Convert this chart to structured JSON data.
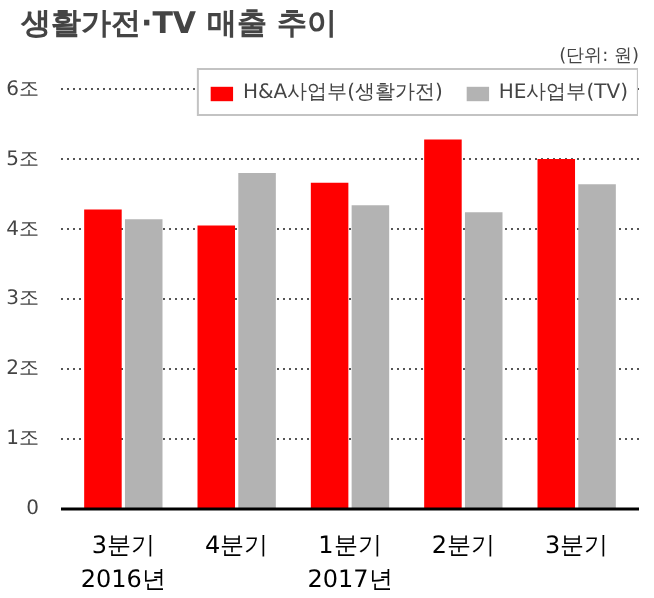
{
  "chart_data": {
    "type": "bar",
    "title": "생활가전·TV 매출 추이",
    "subtitle": "(단위: 원)",
    "categories": [
      "3분기\n2016년",
      "4분기",
      "1분기\n2017년",
      "2분기",
      "3분기"
    ],
    "series": [
      {
        "name": "H&A사업부(생활가전)",
        "color": "#ff0000",
        "values": [
          4.29,
          4.06,
          4.67,
          5.29,
          5.01
        ]
      },
      {
        "name": "HE사업부(TV)",
        "color": "#b3b3b3",
        "values": [
          4.15,
          4.81,
          4.35,
          4.25,
          4.65
        ]
      }
    ],
    "ylim": [
      0,
      6.3
    ],
    "yticks": [
      {
        "value": 0,
        "label": "0"
      },
      {
        "value": 1,
        "label": "1조"
      },
      {
        "value": 2,
        "label": "2조"
      },
      {
        "value": 3,
        "label": "3조"
      },
      {
        "value": 4,
        "label": "4조"
      },
      {
        "value": 5,
        "label": "5조"
      },
      {
        "value": 6,
        "label": "6조"
      }
    ],
    "grid": "y",
    "legend": "top right"
  }
}
